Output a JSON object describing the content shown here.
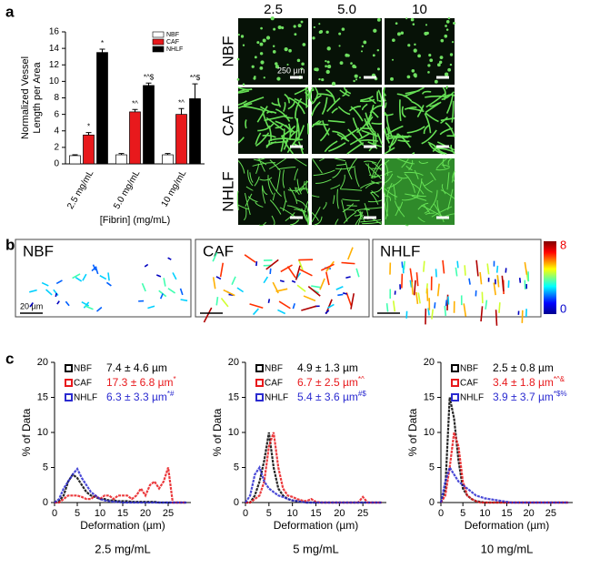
{
  "panel_labels": [
    "a",
    "b",
    "c"
  ],
  "chart_data": [
    {
      "type": "bar",
      "ylabel": [
        "Normalized Vessel",
        "Length per Area"
      ],
      "xlabel": "[Fibrin] (mg/mL)",
      "categories": [
        "2.5 mg/mL",
        "5.0 mg/mL",
        "10 mg/mL"
      ],
      "series": [
        {
          "name": "NBF",
          "color": "#ffffff",
          "values": [
            1,
            1.1,
            1.1
          ],
          "errors": [
            0.1,
            0.15,
            0.15
          ]
        },
        {
          "name": "CAF",
          "color": "#e8191c",
          "values": [
            3.5,
            6.3,
            6.0
          ],
          "errors": [
            0.3,
            0.3,
            0.7
          ],
          "annotations": [
            "*",
            "*^",
            "*^"
          ]
        },
        {
          "name": "NHLF",
          "color": "#000000",
          "values": [
            13.5,
            9.5,
            7.9
          ],
          "errors": [
            0.4,
            0.3,
            1.8
          ],
          "annotations": [
            "*",
            "*^$",
            "*^$"
          ]
        }
      ],
      "ylim": [
        0,
        16
      ],
      "yticks": [
        0,
        2,
        4,
        6,
        8,
        10,
        12,
        14,
        16
      ]
    },
    {
      "type": "line",
      "subtitle": "2.5 mg/mL",
      "ylabel": "% of Data",
      "xlabel": "Deformation (µm)",
      "x": [
        0,
        1,
        2,
        3,
        4,
        5,
        6,
        7,
        8,
        9,
        10,
        11,
        12,
        13,
        14,
        15,
        16,
        17,
        18,
        19,
        20,
        21,
        22,
        23,
        24,
        25,
        26,
        27,
        28,
        29
      ],
      "series": [
        {
          "name": "NBF",
          "color": "#000000",
          "stat": "7.4 ± 4.6 µm",
          "values": [
            0,
            0.2,
            1,
            3,
            4,
            3.5,
            2.5,
            1.5,
            1,
            0.8,
            0.5,
            0.5,
            0.3,
            0.3,
            0.2,
            0.2,
            0.2,
            0.1,
            0.1,
            0.1,
            0.1,
            0.1,
            0.1,
            0,
            0,
            0,
            0,
            0,
            0,
            0
          ]
        },
        {
          "name": "CAF",
          "color": "#e8191c",
          "stat": "17.3 ± 6.8 µm",
          "sup": "*",
          "values": [
            0,
            0,
            0.5,
            1,
            1,
            1,
            0.8,
            0.5,
            0.5,
            1,
            0.5,
            1,
            1,
            0.5,
            1,
            1,
            1,
            0.5,
            1,
            2,
            1,
            2.5,
            3,
            2,
            3,
            5,
            0,
            0,
            0,
            0
          ]
        },
        {
          "name": "NHLF",
          "color": "#2a2ad0",
          "stat": "6.3 ± 3.3 µm",
          "sup": "*#",
          "values": [
            0,
            0.5,
            2,
            3,
            4,
            4.8,
            3.5,
            2.5,
            1.5,
            1,
            0.5,
            0.3,
            0.2,
            0.1,
            0.1,
            0,
            0,
            0,
            0,
            0,
            0,
            0,
            0,
            0,
            0,
            0,
            0,
            0,
            0,
            0
          ]
        }
      ],
      "xlim": [
        0,
        30
      ],
      "xticks": [
        0,
        5,
        10,
        15,
        20,
        25
      ],
      "ylim": [
        0,
        20
      ],
      "yticks": [
        0,
        5,
        10,
        15,
        20
      ]
    },
    {
      "type": "line",
      "subtitle": "5 mg/mL",
      "ylabel": "% of Data",
      "xlabel": "Deformation (µm)",
      "x": [
        0,
        1,
        2,
        3,
        4,
        5,
        6,
        7,
        8,
        9,
        10,
        11,
        12,
        13,
        14,
        15,
        16,
        17,
        18,
        19,
        20,
        21,
        22,
        23,
        24,
        25,
        26,
        27,
        28,
        29
      ],
      "series": [
        {
          "name": "NBF",
          "color": "#000000",
          "stat": "4.9 ± 1.3 µm",
          "values": [
            0,
            0,
            1,
            3,
            6,
            10,
            5,
            2,
            1,
            0.5,
            0.3,
            0.2,
            0.1,
            0,
            0,
            0,
            0,
            0,
            0,
            0,
            0,
            0,
            0,
            0,
            0,
            0,
            0,
            0,
            0,
            0
          ]
        },
        {
          "name": "CAF",
          "color": "#e8191c",
          "stat": "6.7 ± 2.5 µm",
          "sup": "*^",
          "values": [
            0,
            0,
            0.5,
            1,
            3,
            8,
            10,
            5,
            2,
            1,
            0.8,
            0.5,
            0.3,
            0.2,
            0.5,
            0.1,
            0,
            0,
            0,
            0,
            0,
            0,
            0,
            0,
            0,
            0.8,
            0,
            0,
            0,
            0
          ]
        },
        {
          "name": "NHLF",
          "color": "#2a2ad0",
          "stat": "5.4 ± 3.6 µm",
          "sup": "#$",
          "values": [
            0,
            1,
            4,
            5,
            3,
            2,
            1.5,
            1,
            0.8,
            0.5,
            0.3,
            0.2,
            0.1,
            0,
            0,
            0,
            0,
            0,
            0,
            0,
            0,
            0,
            0,
            0,
            0,
            0,
            0,
            0,
            0,
            0
          ]
        }
      ],
      "xlim": [
        0,
        30
      ],
      "xticks": [
        0,
        5,
        10,
        15,
        20,
        25
      ],
      "ylim": [
        0,
        20
      ],
      "yticks": [
        0,
        5,
        10,
        15,
        20
      ]
    },
    {
      "type": "line",
      "subtitle": "10 mg/mL",
      "ylabel": "% of Data",
      "xlabel": "Deformation (µm)",
      "x": [
        0,
        1,
        2,
        3,
        4,
        5,
        6,
        7,
        8,
        9,
        10,
        11,
        12,
        13,
        14,
        15,
        16,
        17,
        18,
        19,
        20,
        21,
        22,
        23,
        24,
        25,
        26,
        27,
        28,
        29
      ],
      "series": [
        {
          "name": "NBF",
          "color": "#000000",
          "stat": "2.5 ± 0.8 µm",
          "values": [
            0,
            2,
            15,
            12,
            6,
            2,
            1,
            0.5,
            0.2,
            0.1,
            0,
            0,
            0,
            0,
            0,
            0,
            0,
            0,
            0,
            0,
            0,
            0,
            0,
            0,
            0,
            0,
            0,
            0,
            0,
            0
          ]
        },
        {
          "name": "CAF",
          "color": "#e8191c",
          "stat": "3.4 ± 1.8 µm",
          "sup": "*^&",
          "values": [
            0,
            1,
            5,
            10,
            8,
            3,
            1,
            0.5,
            0.2,
            0,
            0,
            0,
            0,
            0,
            0,
            0,
            0,
            0,
            0,
            0,
            0,
            0,
            0,
            0,
            0,
            0,
            0,
            0,
            0,
            0
          ]
        },
        {
          "name": "NHLF",
          "color": "#2a2ad0",
          "stat": "3.9 ± 3.7 µm",
          "sup": "*$%",
          "values": [
            0,
            3,
            5,
            4,
            3,
            2.5,
            2,
            1.5,
            1,
            0.8,
            0.6,
            0.5,
            0.4,
            0.3,
            0.2,
            0.1,
            0,
            0,
            0,
            0,
            0,
            0,
            0,
            0,
            0,
            0,
            0,
            0,
            0,
            0
          ]
        }
      ],
      "xlim": [
        0,
        30
      ],
      "xticks": [
        0,
        5,
        10,
        15,
        20,
        25
      ],
      "ylim": [
        0,
        20
      ],
      "yticks": [
        0,
        5,
        10,
        15,
        20
      ]
    }
  ],
  "micrographs": {
    "columns": [
      "2.5",
      "5.0",
      "10"
    ],
    "rows": [
      "NBF",
      "CAF",
      "NHLF"
    ],
    "scale_bar": "250 µm"
  },
  "vector_maps": {
    "panels": [
      "NBF",
      "CAF",
      "NHLF"
    ],
    "scale_bar": "20 µm",
    "colorbar_max": "8",
    "colorbar_min": "0"
  }
}
